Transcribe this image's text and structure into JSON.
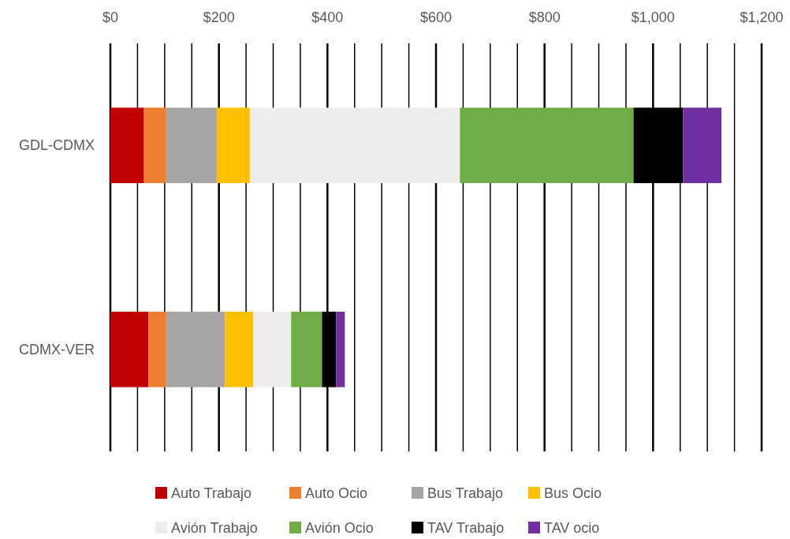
{
  "chart_data": {
    "type": "bar",
    "orientation": "horizontal",
    "stacked": true,
    "categories": [
      "GDL-CDMX",
      "CDMX-VER"
    ],
    "series": [
      {
        "name": "Auto Trabajo",
        "color": "#c00000",
        "values": [
          62,
          70
        ]
      },
      {
        "name": "Auto Ocio",
        "color": "#ed7d31",
        "values": [
          41,
          33
        ]
      },
      {
        "name": "Bus Trabajo",
        "color": "#a5a5a5",
        "values": [
          93,
          108
        ]
      },
      {
        "name": "Bus Ocio",
        "color": "#ffc000",
        "values": [
          61,
          52
        ]
      },
      {
        "name": "Avión Trabajo",
        "color": "#ededed",
        "values": [
          387,
          70
        ]
      },
      {
        "name": "Avión Ocio",
        "color": "#70ad47",
        "values": [
          320,
          57
        ]
      },
      {
        "name": "TAV Trabajo",
        "color": "#000000",
        "values": [
          91,
          26
        ]
      },
      {
        "name": "TAV ocio",
        "color": "#7030a0",
        "values": [
          71,
          16
        ]
      }
    ],
    "xlim": [
      0,
      1200
    ],
    "xticks": [
      {
        "value": 0,
        "label": "$0"
      },
      {
        "value": 50,
        "label": null
      },
      {
        "value": 100,
        "label": null
      },
      {
        "value": 150,
        "label": null
      },
      {
        "value": 200,
        "label": "$200"
      },
      {
        "value": 250,
        "label": null
      },
      {
        "value": 300,
        "label": null
      },
      {
        "value": 350,
        "label": null
      },
      {
        "value": 400,
        "label": "$400"
      },
      {
        "value": 450,
        "label": null
      },
      {
        "value": 500,
        "label": null
      },
      {
        "value": 550,
        "label": null
      },
      {
        "value": 600,
        "label": "$600"
      },
      {
        "value": 650,
        "label": null
      },
      {
        "value": 700,
        "label": null
      },
      {
        "value": 750,
        "label": null
      },
      {
        "value": 800,
        "label": "$800"
      },
      {
        "value": 850,
        "label": null
      },
      {
        "value": 900,
        "label": null
      },
      {
        "value": 950,
        "label": null
      },
      {
        "value": 1000,
        "label": "$1,000"
      },
      {
        "value": 1050,
        "label": null
      },
      {
        "value": 1100,
        "label": null
      },
      {
        "value": 1150,
        "label": null
      },
      {
        "value": 1200,
        "label": "$1,200"
      }
    ],
    "grid": "x",
    "legend": "bottom"
  }
}
